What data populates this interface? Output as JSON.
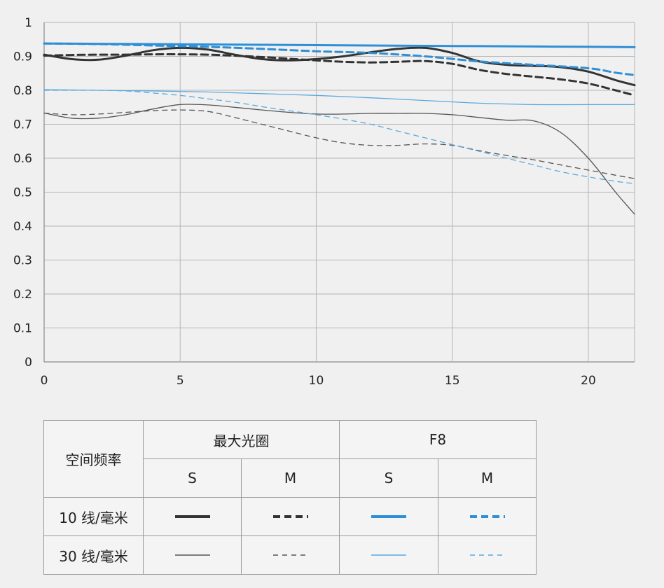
{
  "chart_data": {
    "type": "line",
    "xlim": [
      0,
      21.7
    ],
    "ylim": [
      0,
      1
    ],
    "x_ticks": [
      0,
      5,
      10,
      15,
      20
    ],
    "y_ticks": [
      "0",
      "0.1",
      "0.2",
      "0.3",
      "0.4",
      "0.5",
      "0.6",
      "0.7",
      "0.8",
      "0.9",
      "1"
    ],
    "grid": true,
    "series": [
      {
        "name": "最大光圈 S 10 线/毫米",
        "color": "#333333",
        "dash": "solid",
        "width": 3,
        "x": [
          0,
          1,
          2,
          3,
          4,
          5,
          6,
          7,
          8,
          9,
          10,
          11,
          12,
          13,
          14,
          15,
          16,
          17,
          18,
          19,
          20,
          21,
          21.7
        ],
        "y": [
          0.905,
          0.892,
          0.89,
          0.902,
          0.918,
          0.925,
          0.92,
          0.905,
          0.892,
          0.888,
          0.892,
          0.9,
          0.912,
          0.922,
          0.925,
          0.91,
          0.885,
          0.875,
          0.872,
          0.868,
          0.855,
          0.83,
          0.815
        ]
      },
      {
        "name": "最大光圈 M 10 线/毫米",
        "color": "#333333",
        "dash": "dashed",
        "width": 3,
        "x": [
          0,
          1,
          2,
          3,
          4,
          5,
          6,
          7,
          8,
          9,
          10,
          11,
          12,
          13,
          14,
          15,
          16,
          17,
          18,
          19,
          20,
          21,
          21.7
        ],
        "y": [
          0.902,
          0.904,
          0.905,
          0.905,
          0.906,
          0.906,
          0.905,
          0.902,
          0.898,
          0.893,
          0.888,
          0.884,
          0.882,
          0.884,
          0.886,
          0.878,
          0.86,
          0.848,
          0.84,
          0.832,
          0.82,
          0.8,
          0.785
        ]
      },
      {
        "name": "F8 S 10 线/毫米",
        "color": "#2f8fd6",
        "dash": "solid",
        "width": 3,
        "x": [
          0,
          2,
          4,
          6,
          8,
          10,
          12,
          14,
          16,
          18,
          20,
          21.7
        ],
        "y": [
          0.938,
          0.937,
          0.936,
          0.935,
          0.934,
          0.933,
          0.932,
          0.931,
          0.93,
          0.929,
          0.928,
          0.927
        ]
      },
      {
        "name": "F8 M 10 线/毫米",
        "color": "#2f8fd6",
        "dash": "dashed",
        "width": 3,
        "x": [
          0,
          2,
          4,
          6,
          8,
          10,
          12,
          14,
          16,
          18,
          20,
          21,
          21.7
        ],
        "y": [
          0.938,
          0.936,
          0.932,
          0.928,
          0.922,
          0.915,
          0.91,
          0.9,
          0.885,
          0.875,
          0.865,
          0.852,
          0.845
        ]
      },
      {
        "name": "最大光圈 S 30 线/毫米",
        "color": "#555555",
        "dash": "solid",
        "width": 1.3,
        "x": [
          0,
          1,
          2,
          3,
          4,
          5,
          6,
          7,
          8,
          9,
          10,
          11,
          12,
          13,
          14,
          15,
          16,
          17,
          18,
          19,
          20,
          21,
          21.7
        ],
        "y": [
          0.733,
          0.718,
          0.718,
          0.728,
          0.745,
          0.758,
          0.757,
          0.75,
          0.742,
          0.735,
          0.73,
          0.73,
          0.732,
          0.732,
          0.732,
          0.728,
          0.72,
          0.712,
          0.71,
          0.675,
          0.6,
          0.5,
          0.435
        ]
      },
      {
        "name": "最大光圈 M 30 线/毫米",
        "color": "#555555",
        "dash": "dashed",
        "width": 1.3,
        "x": [
          0,
          1,
          2,
          3,
          4,
          5,
          6,
          7,
          8,
          9,
          10,
          11,
          12,
          13,
          14,
          15,
          16,
          17,
          18,
          19,
          20,
          21,
          21.7
        ],
        "y": [
          0.733,
          0.728,
          0.73,
          0.735,
          0.74,
          0.742,
          0.738,
          0.72,
          0.7,
          0.68,
          0.66,
          0.645,
          0.638,
          0.638,
          0.642,
          0.638,
          0.622,
          0.608,
          0.595,
          0.58,
          0.565,
          0.55,
          0.54
        ]
      },
      {
        "name": "F8 S 30 线/毫米",
        "color": "#5aa9df",
        "dash": "solid",
        "width": 1.3,
        "x": [
          0,
          2,
          4,
          6,
          8,
          10,
          12,
          14,
          16,
          18,
          20,
          21.7
        ],
        "y": [
          0.802,
          0.8,
          0.798,
          0.795,
          0.79,
          0.785,
          0.778,
          0.77,
          0.762,
          0.758,
          0.758,
          0.758
        ]
      },
      {
        "name": "F8 M 30 线/毫米",
        "color": "#5aa9df",
        "dash": "dashed",
        "width": 1.3,
        "x": [
          0,
          1,
          2,
          3,
          4,
          5,
          6,
          7,
          8,
          9,
          10,
          11,
          12,
          13,
          14,
          15,
          16,
          17,
          18,
          19,
          20,
          21,
          21.7
        ],
        "y": [
          0.8,
          0.8,
          0.8,
          0.798,
          0.792,
          0.785,
          0.775,
          0.765,
          0.752,
          0.74,
          0.728,
          0.715,
          0.7,
          0.68,
          0.66,
          0.64,
          0.62,
          0.6,
          0.58,
          0.56,
          0.545,
          0.532,
          0.525
        ]
      }
    ]
  },
  "legend_table": {
    "header_label": "空间频率",
    "group1": "最大光圈",
    "group2": "F8",
    "s": "S",
    "m": "M",
    "row1_label": "10 线/毫米",
    "row2_label": "30 线/毫米",
    "dark_color": "#333333",
    "blue_color": "#2f8fd6",
    "dark_thin_color": "#555555",
    "blue_thin_color": "#5aa9df"
  }
}
